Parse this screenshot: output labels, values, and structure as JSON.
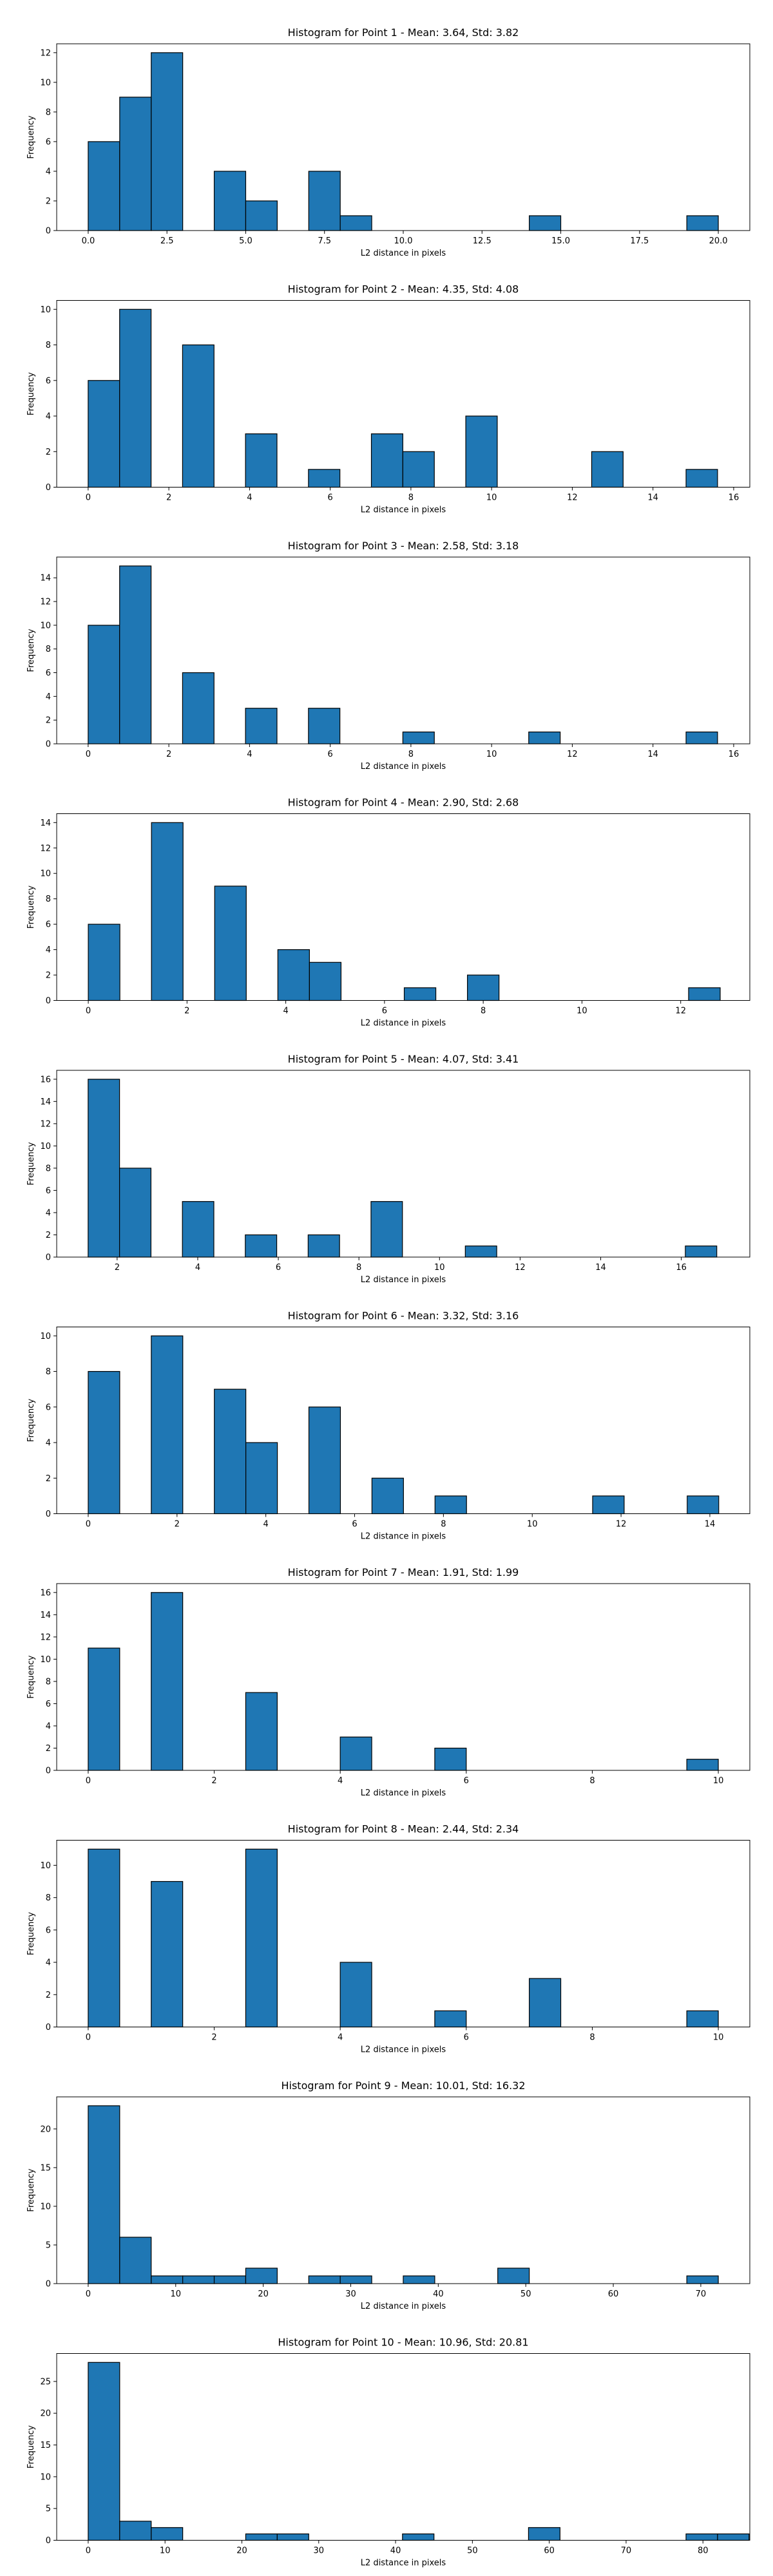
{
  "style": {
    "bar_color": "#1f77b4",
    "edge_color": "#000000"
  },
  "chart_data": [
    {
      "type": "bar",
      "title": "Histogram for Point 1 - Mean: 3.64, Std: 3.82",
      "xlabel": "L2 distance in pixels",
      "ylabel": "Frequency",
      "xlim": [
        -1,
        21
      ],
      "ylim": [
        0,
        12.6
      ],
      "xticks": [
        0.0,
        2.5,
        5.0,
        7.5,
        10.0,
        12.5,
        15.0,
        17.5,
        20.0
      ],
      "xtick_labels": [
        "0.0",
        "2.5",
        "5.0",
        "7.5",
        "10.0",
        "12.5",
        "15.0",
        "17.5",
        "20.0"
      ],
      "yticks": [
        0,
        2,
        4,
        6,
        8,
        10,
        12
      ],
      "bins": [
        [
          0.0,
          1.0,
          6
        ],
        [
          1.0,
          2.0,
          9
        ],
        [
          2.0,
          3.0,
          12
        ],
        [
          4.0,
          5.0,
          4
        ],
        [
          5.0,
          6.0,
          2
        ],
        [
          7.0,
          8.0,
          4
        ],
        [
          8.0,
          9.0,
          1
        ],
        [
          14.0,
          15.0,
          1
        ],
        [
          19.0,
          20.0,
          1
        ]
      ]
    },
    {
      "type": "bar",
      "title": "Histogram for Point 2 - Mean: 4.35, Std: 4.08",
      "xlabel": "L2 distance in pixels",
      "ylabel": "Frequency",
      "xlim": [
        -0.78,
        16.4
      ],
      "ylim": [
        0,
        10.5
      ],
      "xticks": [
        0,
        2,
        4,
        6,
        8,
        10,
        12,
        14,
        16
      ],
      "xtick_labels": [
        "0",
        "2",
        "4",
        "6",
        "8",
        "10",
        "12",
        "14",
        "16"
      ],
      "yticks": [
        0,
        2,
        4,
        6,
        8,
        10
      ],
      "bins": [
        [
          0.0,
          0.78,
          6
        ],
        [
          0.78,
          1.56,
          10
        ],
        [
          2.34,
          3.12,
          8
        ],
        [
          3.9,
          4.68,
          3
        ],
        [
          5.46,
          6.24,
          1
        ],
        [
          7.02,
          7.8,
          3
        ],
        [
          7.8,
          8.58,
          2
        ],
        [
          9.36,
          10.14,
          4
        ],
        [
          12.48,
          13.26,
          2
        ],
        [
          14.82,
          15.6,
          1
        ]
      ]
    },
    {
      "type": "bar",
      "title": "Histogram for Point 3 - Mean: 2.58, Std: 3.18",
      "xlabel": "L2 distance in pixels",
      "ylabel": "Frequency",
      "xlim": [
        -0.78,
        16.4
      ],
      "ylim": [
        0,
        15.75
      ],
      "xticks": [
        0,
        2,
        4,
        6,
        8,
        10,
        12,
        14,
        16
      ],
      "xtick_labels": [
        "0",
        "2",
        "4",
        "6",
        "8",
        "10",
        "12",
        "14",
        "16"
      ],
      "yticks": [
        0,
        2,
        4,
        6,
        8,
        10,
        12,
        14
      ],
      "bins": [
        [
          0.0,
          0.78,
          10
        ],
        [
          0.78,
          1.56,
          15
        ],
        [
          2.34,
          3.12,
          6
        ],
        [
          3.9,
          4.68,
          3
        ],
        [
          5.46,
          6.24,
          3
        ],
        [
          7.8,
          8.58,
          1
        ],
        [
          10.92,
          11.7,
          1
        ],
        [
          14.82,
          15.6,
          1
        ]
      ]
    },
    {
      "type": "bar",
      "title": "Histogram for Point 4 - Mean: 2.90, Std: 2.68",
      "xlabel": "L2 distance in pixels",
      "ylabel": "Frequency",
      "xlim": [
        -0.64,
        13.4
      ],
      "ylim": [
        0,
        14.7
      ],
      "xticks": [
        0,
        2,
        4,
        6,
        8,
        10,
        12
      ],
      "xtick_labels": [
        "0",
        "2",
        "4",
        "6",
        "8",
        "10",
        "12"
      ],
      "yticks": [
        0,
        2,
        4,
        6,
        8,
        10,
        12,
        14
      ],
      "bins": [
        [
          0.0,
          0.64,
          6
        ],
        [
          1.28,
          1.92,
          14
        ],
        [
          2.56,
          3.2,
          9
        ],
        [
          3.84,
          4.48,
          4
        ],
        [
          4.48,
          5.12,
          3
        ],
        [
          6.4,
          7.04,
          1
        ],
        [
          7.68,
          8.32,
          2
        ],
        [
          12.16,
          12.8,
          1
        ]
      ]
    },
    {
      "type": "bar",
      "title": "Histogram for Point 5 - Mean: 4.07, Std: 3.41",
      "xlabel": "L2 distance in pixels",
      "ylabel": "Frequency",
      "xlim": [
        0.5,
        17.7
      ],
      "ylim": [
        0,
        16.8
      ],
      "xticks": [
        2,
        4,
        6,
        8,
        10,
        12,
        14,
        16
      ],
      "xtick_labels": [
        "2",
        "4",
        "6",
        "8",
        "10",
        "12",
        "14",
        "16"
      ],
      "yticks": [
        0,
        2,
        4,
        6,
        8,
        10,
        12,
        14,
        16
      ],
      "bins": [
        [
          1.28,
          2.06,
          16
        ],
        [
          2.06,
          2.84,
          8
        ],
        [
          3.62,
          4.4,
          5
        ],
        [
          5.18,
          5.96,
          2
        ],
        [
          6.74,
          7.52,
          2
        ],
        [
          8.3,
          9.08,
          5
        ],
        [
          10.64,
          11.42,
          1
        ],
        [
          16.1,
          16.88,
          1
        ]
      ]
    },
    {
      "type": "bar",
      "title": "Histogram for Point 6 - Mean: 3.32, Std: 3.16",
      "xlabel": "L2 distance in pixels",
      "ylabel": "Frequency",
      "xlim": [
        -0.71,
        14.9
      ],
      "ylim": [
        0,
        10.5
      ],
      "xticks": [
        0,
        2,
        4,
        6,
        8,
        10,
        12,
        14
      ],
      "xtick_labels": [
        "0",
        "2",
        "4",
        "6",
        "8",
        "10",
        "12",
        "14"
      ],
      "yticks": [
        0,
        2,
        4,
        6,
        8,
        10
      ],
      "bins": [
        [
          0.0,
          0.71,
          8
        ],
        [
          1.42,
          2.13,
          10
        ],
        [
          2.84,
          3.55,
          7
        ],
        [
          3.55,
          4.26,
          4
        ],
        [
          4.97,
          5.68,
          6
        ],
        [
          6.39,
          7.1,
          2
        ],
        [
          7.81,
          8.52,
          1
        ],
        [
          11.36,
          12.07,
          1
        ],
        [
          13.49,
          14.2,
          1
        ]
      ]
    },
    {
      "type": "bar",
      "title": "Histogram for Point 7 - Mean: 1.91, Std: 1.99",
      "xlabel": "L2 distance in pixels",
      "ylabel": "Frequency",
      "xlim": [
        -0.5,
        10.5
      ],
      "ylim": [
        0,
        16.8
      ],
      "xticks": [
        0,
        2,
        4,
        6,
        8,
        10
      ],
      "xtick_labels": [
        "0",
        "2",
        "4",
        "6",
        "8",
        "10"
      ],
      "yticks": [
        0,
        2,
        4,
        6,
        8,
        10,
        12,
        14,
        16
      ],
      "bins": [
        [
          0.0,
          0.5,
          11
        ],
        [
          1.0,
          1.5,
          16
        ],
        [
          2.5,
          3.0,
          7
        ],
        [
          4.0,
          4.5,
          3
        ],
        [
          5.5,
          6.0,
          2
        ],
        [
          9.5,
          10.0,
          1
        ]
      ]
    },
    {
      "type": "bar",
      "title": "Histogram for Point 8 - Mean: 2.44, Std: 2.34",
      "xlabel": "L2 distance in pixels",
      "ylabel": "Frequency",
      "xlim": [
        -0.5,
        10.5
      ],
      "ylim": [
        0,
        11.55
      ],
      "xticks": [
        0,
        2,
        4,
        6,
        8,
        10
      ],
      "xtick_labels": [
        "0",
        "2",
        "4",
        "6",
        "8",
        "10"
      ],
      "yticks": [
        0,
        2,
        4,
        6,
        8,
        10
      ],
      "bins": [
        [
          0.0,
          0.5,
          11
        ],
        [
          1.0,
          1.5,
          9
        ],
        [
          2.5,
          3.0,
          11
        ],
        [
          4.0,
          4.5,
          4
        ],
        [
          5.5,
          6.0,
          1
        ],
        [
          7.0,
          7.5,
          3
        ],
        [
          9.5,
          10.0,
          1
        ]
      ]
    },
    {
      "type": "bar",
      "title": "Histogram for Point 9 - Mean: 10.01, Std: 16.32",
      "xlabel": "L2 distance in pixels",
      "ylabel": "Frequency",
      "xlim": [
        -3.6,
        75.6
      ],
      "ylim": [
        0,
        24.15
      ],
      "xticks": [
        0,
        10,
        20,
        30,
        40,
        50,
        60,
        70
      ],
      "xtick_labels": [
        "0",
        "10",
        "20",
        "30",
        "40",
        "50",
        "60",
        "70"
      ],
      "yticks": [
        0,
        5,
        10,
        15,
        20
      ],
      "bins": [
        [
          0.0,
          3.6,
          23
        ],
        [
          3.6,
          7.2,
          6
        ],
        [
          7.2,
          10.8,
          1
        ],
        [
          10.8,
          14.4,
          1
        ],
        [
          14.4,
          18.0,
          1
        ],
        [
          18.0,
          21.6,
          2
        ],
        [
          25.2,
          28.8,
          1
        ],
        [
          28.8,
          32.4,
          1
        ],
        [
          36.0,
          39.6,
          1
        ],
        [
          46.8,
          50.4,
          2
        ],
        [
          68.4,
          72.0,
          1
        ]
      ]
    },
    {
      "type": "bar",
      "title": "Histogram for Point 10 - Mean: 10.96, Std: 20.81",
      "xlabel": "L2 distance in pixels",
      "ylabel": "Frequency",
      "xlim": [
        -4.1,
        86.1
      ],
      "ylim": [
        0,
        29.4
      ],
      "xticks": [
        0,
        10,
        20,
        30,
        40,
        50,
        60,
        70,
        80
      ],
      "xtick_labels": [
        "0",
        "10",
        "20",
        "30",
        "40",
        "50",
        "60",
        "70",
        "80"
      ],
      "yticks": [
        0,
        5,
        10,
        15,
        20,
        25
      ],
      "bins": [
        [
          0.0,
          4.1,
          28
        ],
        [
          4.1,
          8.2,
          3
        ],
        [
          8.2,
          12.3,
          2
        ],
        [
          20.5,
          24.6,
          1
        ],
        [
          24.6,
          28.7,
          1
        ],
        [
          40.9,
          45.0,
          1
        ],
        [
          57.3,
          61.4,
          2
        ],
        [
          77.8,
          81.9,
          1
        ],
        [
          81.9,
          86.0,
          1
        ]
      ]
    }
  ]
}
